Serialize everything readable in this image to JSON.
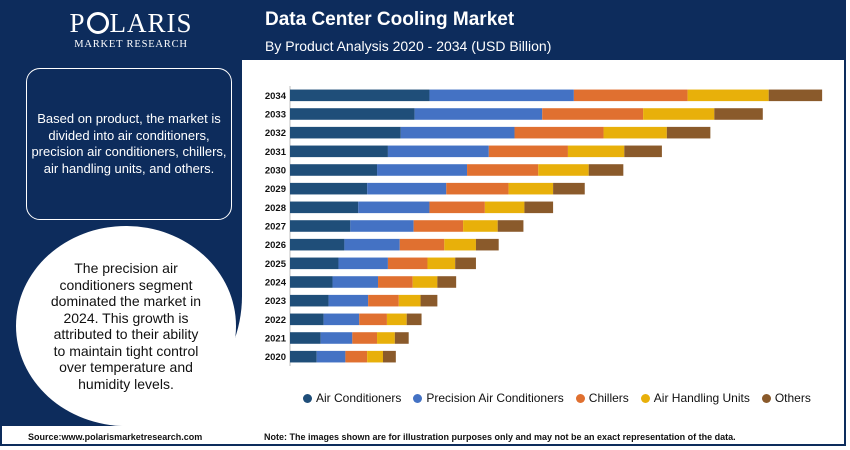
{
  "brand": {
    "name": "POLARIS",
    "name_before_o": "P",
    "name_after_o": "LARIS",
    "tagline": "MARKET RESEARCH"
  },
  "header": {
    "title": "Data Center Cooling Market",
    "subtitle": "By Product Analysis 2020 - 2034 (USD Billion)"
  },
  "left_panel": {
    "summary": "Based on product, the market is divided into air conditioners, precision air conditioners, chillers, air handling units, and others.",
    "highlight": "The precision air conditioners segment dominated the market in 2024. This growth is attributed to their ability to maintain tight control over temperature and humidity levels."
  },
  "footer": {
    "source": "Source:www.polarismarketresearch.com",
    "note": "Note: The images shown are for illustration purposes only and may not be an exact representation of the data."
  },
  "colors": {
    "header_bg": "#0d2c5c",
    "air_conditioners": "#1f4e79",
    "precision_air_conditioners": "#4472c4",
    "chillers": "#e07030",
    "air_handling_units": "#e8b00a",
    "others": "#8a5a2b"
  },
  "chart_data": {
    "type": "bar",
    "orientation": "horizontal",
    "stacked": true,
    "categories": [
      "2034",
      "2033",
      "2032",
      "2031",
      "2030",
      "2029",
      "2028",
      "2027",
      "2026",
      "2025",
      "2024",
      "2023",
      "2022",
      "2021",
      "2020"
    ],
    "series": [
      {
        "name": "Air Conditioners",
        "color": "#1f4e79",
        "values": [
          14.1,
          12.6,
          11.2,
          9.9,
          8.8,
          7.8,
          6.9,
          6.1,
          5.5,
          4.9,
          4.3,
          3.9,
          3.4,
          3.1,
          2.7
        ]
      },
      {
        "name": "Precision Air Conditioners",
        "color": "#4472c4",
        "values": [
          14.6,
          12.9,
          11.5,
          10.2,
          9.1,
          8.0,
          7.2,
          6.4,
          5.6,
          5.0,
          4.6,
          4.0,
          3.6,
          3.2,
          2.9
        ]
      },
      {
        "name": "Chillers",
        "color": "#e07030",
        "values": [
          11.5,
          10.2,
          9.0,
          8.0,
          7.2,
          6.3,
          5.6,
          5.0,
          4.5,
          4.0,
          3.5,
          3.1,
          2.8,
          2.5,
          2.2
        ]
      },
      {
        "name": "Air Handling Units",
        "color": "#e8b00a",
        "values": [
          8.2,
          7.2,
          6.4,
          5.7,
          5.1,
          4.5,
          4.0,
          3.5,
          3.2,
          2.8,
          2.5,
          2.2,
          2.0,
          1.8,
          1.6
        ]
      },
      {
        "name": "Others",
        "color": "#8a5a2b",
        "values": [
          5.4,
          4.9,
          4.4,
          3.8,
          3.5,
          3.2,
          2.9,
          2.6,
          2.3,
          2.1,
          1.9,
          1.7,
          1.5,
          1.4,
          1.3
        ]
      }
    ],
    "xlim": [
      0,
      55
    ],
    "gridlines": false,
    "legend_position": "bottom"
  }
}
